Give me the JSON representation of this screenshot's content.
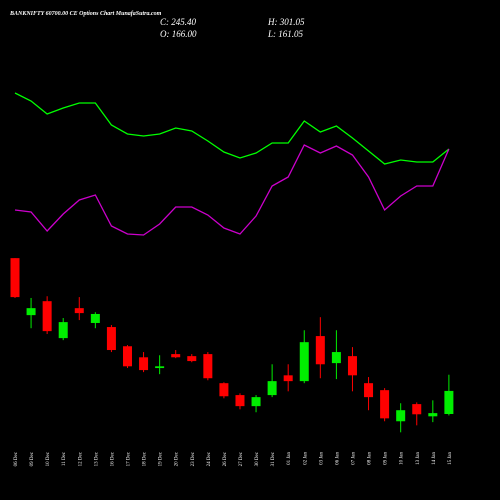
{
  "chart_data": {
    "type": "candlestick",
    "title": "BANKNIFTY 60700.00 CE Options Chart MunafaSutra.com",
    "info": [
      "C: 245.40",
      "H: 301.05",
      "O: 166.00",
      "L: 161.05"
    ],
    "categories": [
      "06 Dec",
      "09 Dec",
      "10 Dec",
      "11 Dec",
      "12 Dec",
      "13 Dec",
      "16 Dec",
      "17 Dec",
      "18 Dec",
      "19 Dec",
      "20 Dec",
      "23 Dec",
      "24 Dec",
      "26 Dec",
      "27 Dec",
      "30 Dec",
      "31 Dec",
      "01 Jan",
      "02 Jan",
      "03 Jan",
      "06 Jan",
      "07 Jan",
      "08 Jan",
      "09 Jan",
      "10 Jan",
      "13 Jan",
      "14 Jan",
      "15 Jan"
    ],
    "open": [
      702,
      506,
      554,
      427,
      530,
      479,
      465,
      399,
      361,
      324,
      372,
      365,
      372,
      272,
      231,
      193,
      231,
      299,
      279,
      434,
      341,
      365,
      272,
      248,
      141,
      200,
      158,
      166
    ],
    "high": [
      702,
      565,
      571,
      496,
      568,
      516,
      472,
      403,
      379,
      368,
      386,
      372,
      379,
      275,
      237,
      231,
      337,
      337,
      454,
      499,
      454,
      396,
      293,
      255,
      203,
      206,
      213,
      301.05
    ],
    "low": [
      565,
      461,
      441,
      420,
      489,
      461,
      379,
      324,
      310,
      303,
      358,
      344,
      282,
      220,
      182,
      172,
      224,
      244,
      272,
      289,
      286,
      244,
      179,
      141,
      103,
      127,
      138,
      161.05
    ],
    "close": [
      568,
      530,
      451,
      482,
      513,
      510,
      386,
      330,
      317,
      330,
      361,
      348,
      289,
      227,
      193,
      224,
      279,
      279,
      413,
      337,
      379,
      299,
      224,
      151,
      179,
      165,
      169,
      245.4
    ],
    "up_color": "#00ee00",
    "down_color": "#ff0000",
    "ylim": [
      80,
      730
    ],
    "indicators": {
      "y2lim": [
        0,
        100
      ],
      "series": [
        {
          "color": "#00ff00",
          "values": [
            83.5,
            79.5,
            73,
            76,
            78.5,
            78.5,
            67.5,
            63,
            62,
            63,
            66,
            64.5,
            59.5,
            54,
            51,
            53.5,
            58.5,
            58.5,
            69.5,
            64,
            67,
            61,
            54.5,
            48,
            50,
            49,
            49,
            55.5
          ]
        },
        {
          "color": "#cc00cc",
          "values": [
            25,
            24,
            14.5,
            23,
            30,
            32.5,
            17,
            13,
            12.5,
            18,
            26.5,
            26.5,
            22.5,
            16,
            13,
            22,
            37,
            41.5,
            57.5,
            53.5,
            57,
            52.5,
            41.5,
            25,
            32,
            37,
            37,
            55.5
          ]
        }
      ]
    }
  }
}
